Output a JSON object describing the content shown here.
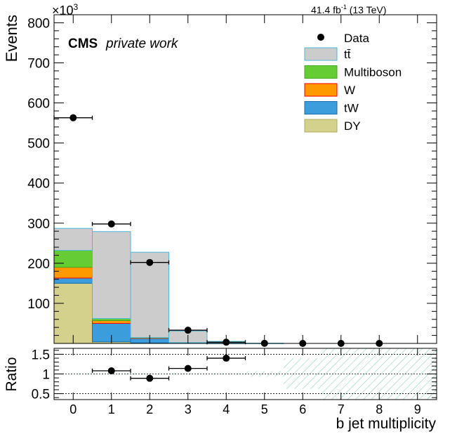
{
  "header": {
    "lumi_prefix": "41.4 fb",
    "lumi_exp": "-1",
    "lumi_suffix": " (13 TeV)",
    "cms": "CMS",
    "private": "private work",
    "exponent_base": "×10",
    "exponent_power": "3"
  },
  "chart_data": {
    "type": "bar",
    "stacked": true,
    "xlabel": "b jet multiplicity",
    "ylabel": "Events",
    "ratio_ylabel": "Ratio",
    "categories": [
      "0",
      "1",
      "2",
      "3",
      "4",
      "5",
      "6",
      "7",
      "8",
      "9"
    ],
    "xlim": [
      -0.5,
      9.5
    ],
    "ylim": [
      0,
      820
    ],
    "y_multiplier": 1000,
    "yticks": [
      100,
      200,
      300,
      400,
      500,
      600,
      700,
      800
    ],
    "yticklabels": [
      "100",
      "200",
      "300",
      "400",
      "500",
      "600",
      "700",
      "800"
    ],
    "ratio_ylim": [
      0.35,
      1.65
    ],
    "ratio_yticks": [
      0.5,
      1,
      1.5
    ],
    "ratio_yticklabels": [
      "0.5",
      "1",
      "1.5"
    ],
    "series": [
      {
        "name": "DY",
        "fill": "#d4d18d",
        "line": "#b2ac5a",
        "values": [
          150,
          4,
          1,
          0,
          0,
          0,
          0,
          0,
          0,
          0
        ]
      },
      {
        "name": "tW",
        "fill": "#3b9ddb",
        "line": "#1a6fb0",
        "values": [
          13,
          46,
          12,
          2,
          0.5,
          0,
          0,
          0,
          0,
          0
        ]
      },
      {
        "name": "W",
        "fill": "#ff9900",
        "line": "#ff0000",
        "values": [
          27,
          7,
          0.5,
          0,
          0,
          0,
          0,
          0,
          0,
          0
        ]
      },
      {
        "name": "Multiboson",
        "fill": "#66cc33",
        "line": "#44aa22",
        "values": [
          42,
          5,
          1,
          0,
          0,
          0,
          0,
          0,
          0,
          0
        ]
      },
      {
        "name": "tt̄",
        "fill": "#cccccc",
        "line": "#4ab8d8",
        "values": [
          55,
          217,
          213,
          29,
          4.5,
          0.5,
          0,
          0,
          0,
          0
        ]
      }
    ],
    "data": {
      "name": "Data",
      "x": [
        0,
        1,
        2,
        3,
        4,
        5,
        6,
        7,
        8
      ],
      "y": [
        563,
        298,
        202,
        33,
        3,
        0.3,
        0,
        0,
        0
      ]
    },
    "ratio": {
      "x": [
        1,
        2,
        3,
        4
      ],
      "y": [
        1.08,
        0.89,
        1.14,
        1.4
      ]
    },
    "uncertainty_band": [
      {
        "xmin": -0.5,
        "xmax": 4.5,
        "low": 0.98,
        "high": 1.02
      },
      {
        "xmin": 4.5,
        "xmax": 5.5,
        "low": 0.93,
        "high": 1.07
      },
      {
        "xmin": 5.5,
        "xmax": 6.5,
        "low": 0.62,
        "high": 1.4
      },
      {
        "xmin": 6.5,
        "xmax": 9.5,
        "low": 0.35,
        "high": 1.65
      }
    ]
  }
}
